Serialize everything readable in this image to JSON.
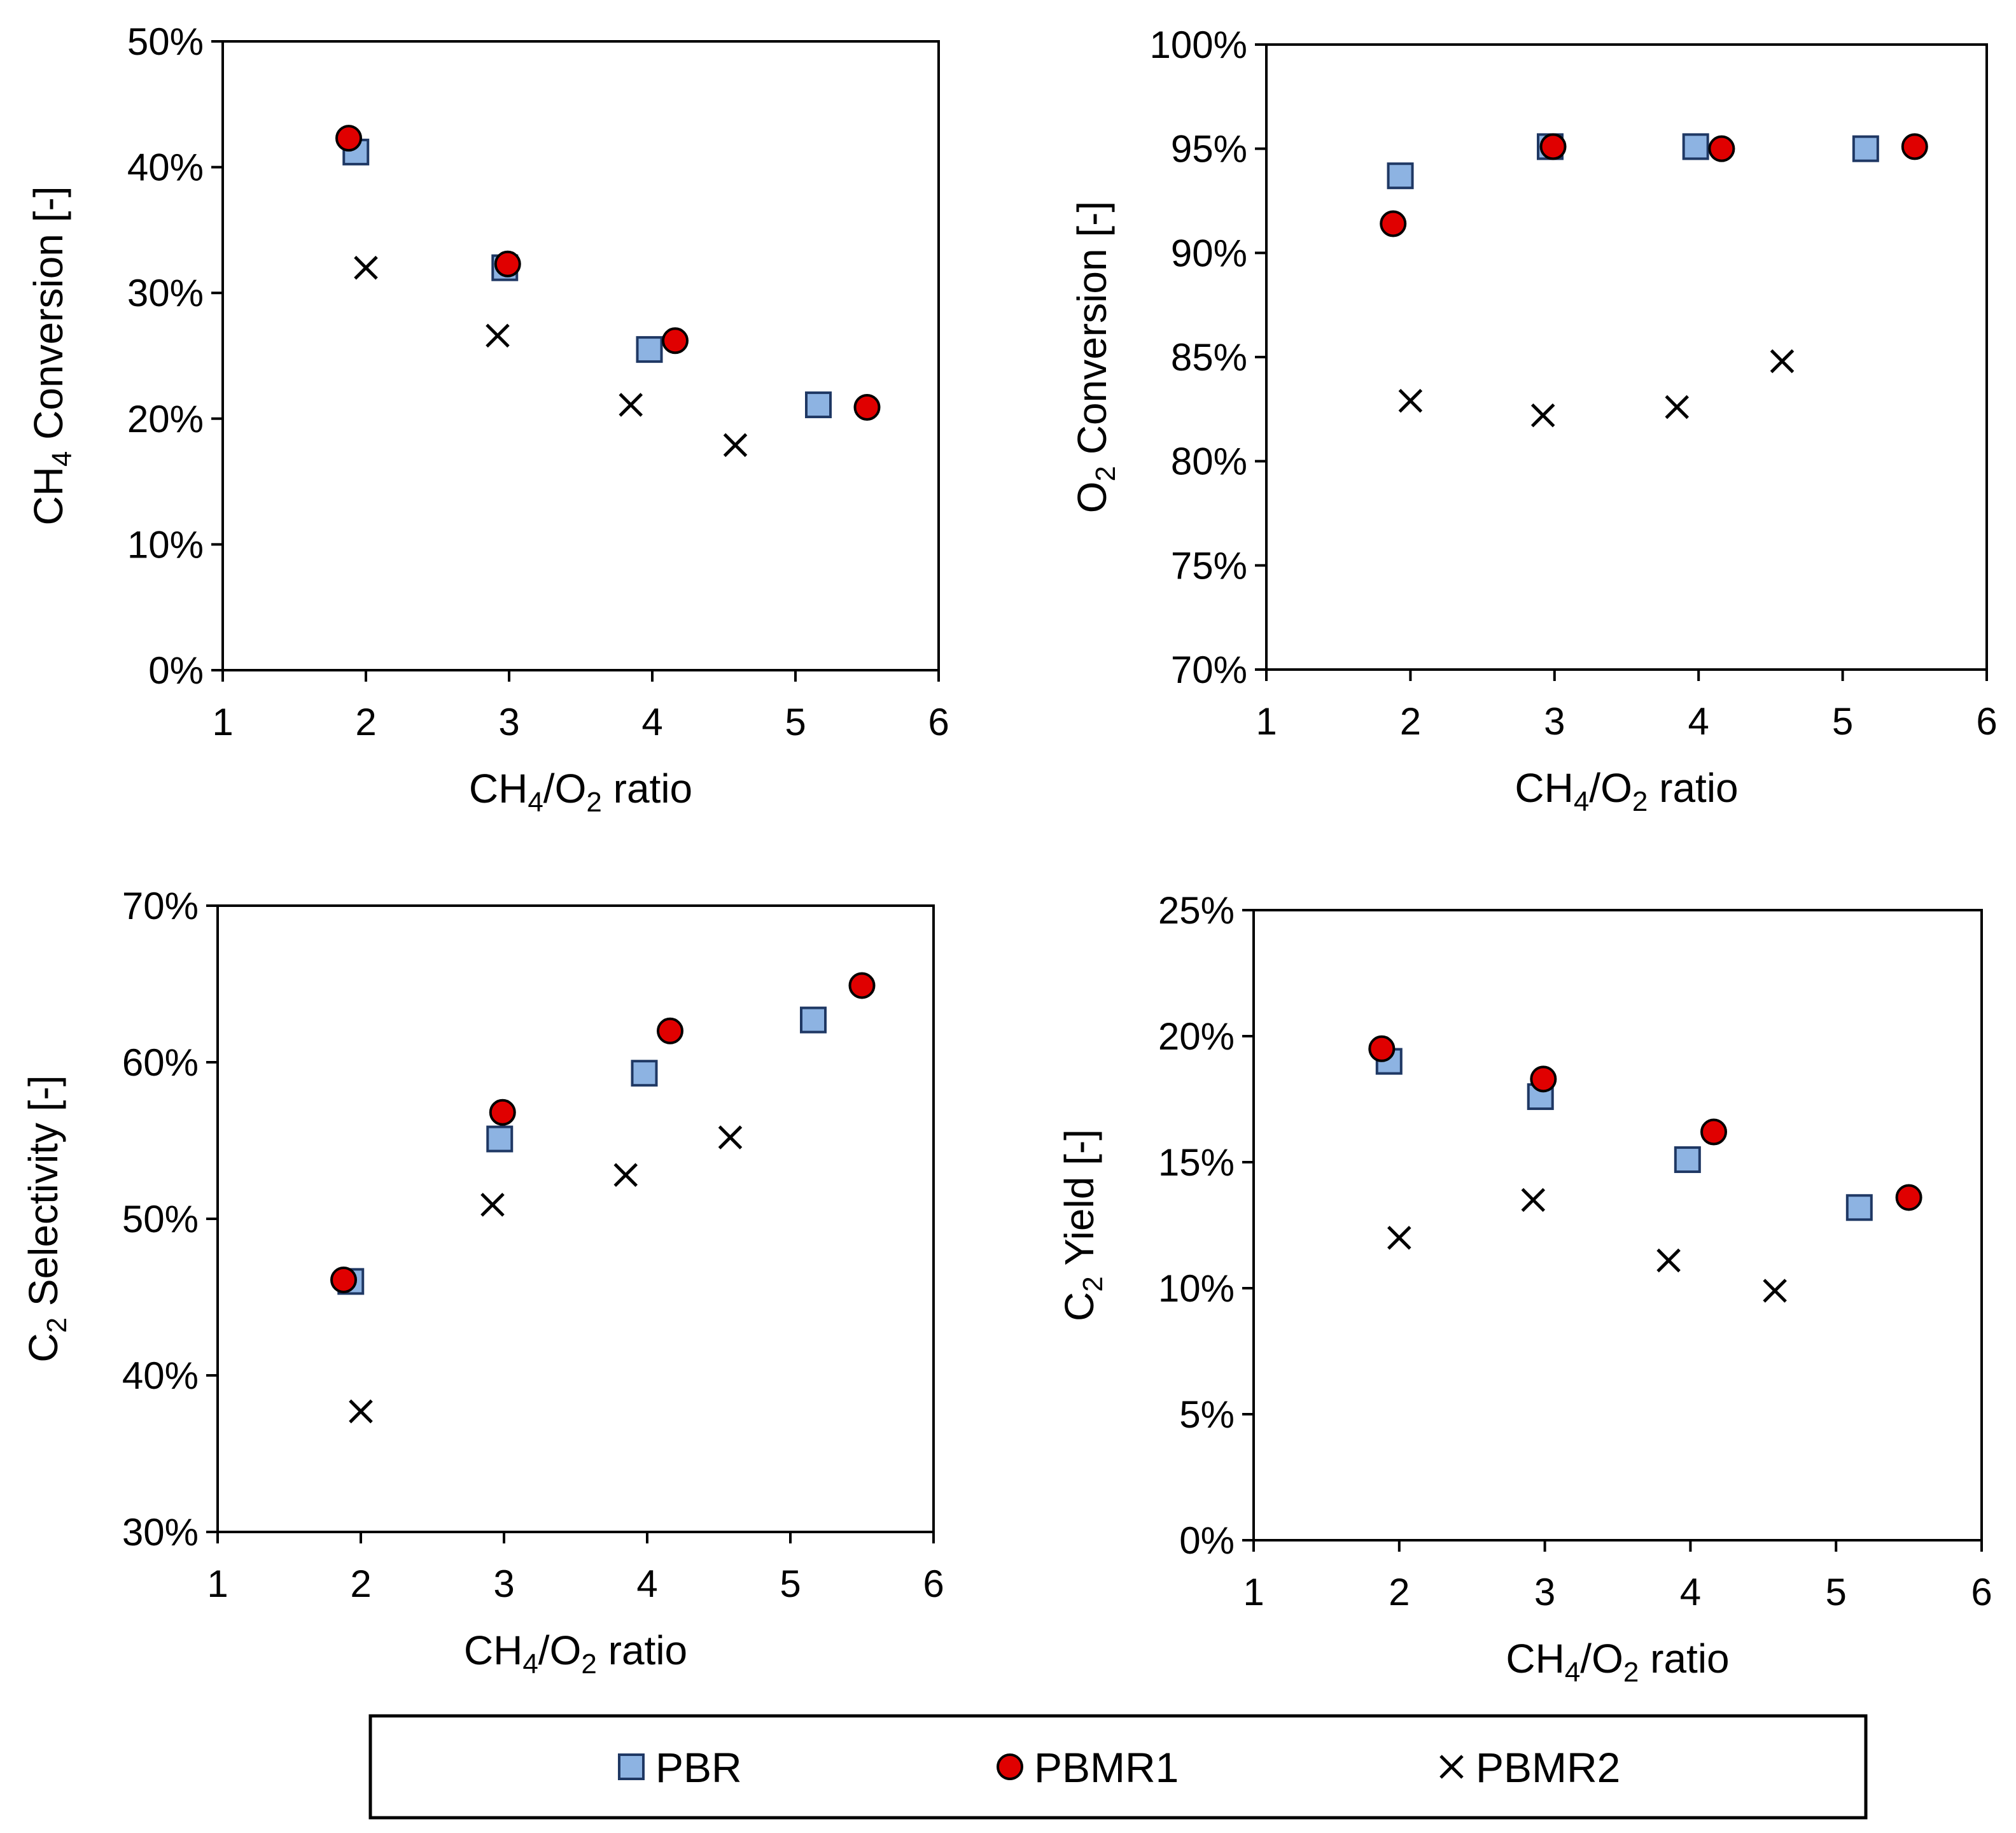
{
  "figure": {
    "legend": {
      "entries": [
        {
          "name": "PBR",
          "marker": "square",
          "fill": "#8db3e2",
          "stroke": "#1f3864"
        },
        {
          "name": "PBMR1",
          "marker": "circle",
          "fill": "#e00000",
          "stroke": "#000000"
        },
        {
          "name": "PBMR2",
          "marker": "x",
          "fill": "none",
          "stroke": "#000000"
        }
      ]
    }
  },
  "chart_data": [
    {
      "type": "scatter",
      "id": "ch4-conversion",
      "xlabel": {
        "main": "CH",
        "sub1": "4",
        "mid": "/O",
        "sub2": "2",
        "tail": " ratio"
      },
      "ylabel": {
        "main": "CH",
        "sub": "4",
        "tail": " Conversion [-]"
      },
      "xlim": [
        1,
        6
      ],
      "ylim": [
        0,
        50
      ],
      "xticks": [
        1,
        2,
        3,
        4,
        5,
        6
      ],
      "xtick_labels": [
        "1",
        "2",
        "3",
        "4",
        "5",
        "6"
      ],
      "yticks": [
        0,
        10,
        20,
        30,
        40,
        50
      ],
      "ytick_labels": [
        "0%",
        "10%",
        "20%",
        "30%",
        "40%",
        "50%"
      ],
      "series": [
        {
          "name": "PBR",
          "x": [
            1.93,
            2.97,
            3.98,
            5.16
          ],
          "y": [
            41.2,
            32.0,
            25.5,
            21.1
          ]
        },
        {
          "name": "PBMR1",
          "x": [
            1.88,
            2.99,
            4.16,
            5.5
          ],
          "y": [
            42.3,
            32.3,
            26.2,
            20.9
          ]
        },
        {
          "name": "PBMR2",
          "x": [
            2.0,
            2.92,
            3.85,
            4.58
          ],
          "y": [
            32.0,
            26.6,
            21.1,
            17.9
          ]
        }
      ]
    },
    {
      "type": "scatter",
      "id": "o2-conversion",
      "xlabel": {
        "main": "CH",
        "sub1": "4",
        "mid": "/O",
        "sub2": "2",
        "tail": " ratio"
      },
      "ylabel": {
        "main": "O",
        "sub": "2",
        "tail": " Conversion [-]"
      },
      "xlim": [
        1,
        6
      ],
      "ylim": [
        70,
        100
      ],
      "xticks": [
        1,
        2,
        3,
        4,
        5,
        6
      ],
      "xtick_labels": [
        "1",
        "2",
        "3",
        "4",
        "5",
        "6"
      ],
      "yticks": [
        70,
        75,
        80,
        85,
        90,
        95,
        100
      ],
      "ytick_labels": [
        "70%",
        "75%",
        "80%",
        "85%",
        "90%",
        "95%",
        "100%"
      ],
      "series": [
        {
          "name": "PBR",
          "x": [
            1.93,
            2.97,
            3.98,
            5.16
          ],
          "y": [
            93.7,
            95.1,
            95.1,
            95.0
          ]
        },
        {
          "name": "PBMR1",
          "x": [
            1.88,
            2.99,
            4.16,
            5.5
          ],
          "y": [
            91.4,
            95.1,
            95.0,
            95.1
          ]
        },
        {
          "name": "PBMR2",
          "x": [
            2.0,
            2.92,
            3.85,
            4.58
          ],
          "y": [
            82.9,
            82.2,
            82.6,
            84.8
          ]
        }
      ]
    },
    {
      "type": "scatter",
      "id": "c2-selectivity",
      "xlabel": {
        "main": "CH",
        "sub1": "4",
        "mid": "/O",
        "sub2": "2",
        "tail": " ratio"
      },
      "ylabel": {
        "main": "C",
        "sub": "2",
        "tail": " Selectivity [-]"
      },
      "xlim": [
        1,
        6
      ],
      "ylim": [
        30,
        70
      ],
      "xticks": [
        1,
        2,
        3,
        4,
        5,
        6
      ],
      "xtick_labels": [
        "1",
        "2",
        "3",
        "4",
        "5",
        "6"
      ],
      "yticks": [
        30,
        40,
        50,
        60,
        70
      ],
      "ytick_labels": [
        "30%",
        "40%",
        "50%",
        "60%",
        "70%"
      ],
      "series": [
        {
          "name": "PBR",
          "x": [
            1.93,
            2.97,
            3.98,
            5.16
          ],
          "y": [
            46.0,
            55.1,
            59.3,
            62.7
          ]
        },
        {
          "name": "PBMR1",
          "x": [
            1.88,
            2.99,
            4.16,
            5.5
          ],
          "y": [
            46.1,
            56.8,
            62.0,
            64.9
          ]
        },
        {
          "name": "PBMR2",
          "x": [
            2.0,
            2.92,
            3.85,
            4.58
          ],
          "y": [
            37.7,
            50.9,
            52.8,
            55.2
          ]
        }
      ]
    },
    {
      "type": "scatter",
      "id": "c2-yield",
      "xlabel": {
        "main": "CH",
        "sub1": "4",
        "mid": "/O",
        "sub2": "2",
        "tail": " ratio"
      },
      "ylabel": {
        "main": "C",
        "sub": "2",
        "tail": " Yield [-]"
      },
      "xlim": [
        1,
        6
      ],
      "ylim": [
        0,
        25
      ],
      "xticks": [
        1,
        2,
        3,
        4,
        5,
        6
      ],
      "xtick_labels": [
        "1",
        "2",
        "3",
        "4",
        "5",
        "6"
      ],
      "yticks": [
        0,
        5,
        10,
        15,
        20,
        25
      ],
      "ytick_labels": [
        "0%",
        "5%",
        "10%",
        "15%",
        "20%",
        "25%"
      ],
      "series": [
        {
          "name": "PBR",
          "x": [
            1.93,
            2.97,
            3.98,
            5.16
          ],
          "y": [
            19.0,
            17.6,
            15.1,
            13.2
          ]
        },
        {
          "name": "PBMR1",
          "x": [
            1.88,
            2.99,
            4.16,
            5.5
          ],
          "y": [
            19.5,
            18.3,
            16.2,
            13.6
          ]
        },
        {
          "name": "PBMR2",
          "x": [
            2.0,
            2.92,
            3.85,
            4.58
          ],
          "y": [
            12.0,
            13.5,
            11.1,
            9.9
          ]
        }
      ]
    }
  ]
}
